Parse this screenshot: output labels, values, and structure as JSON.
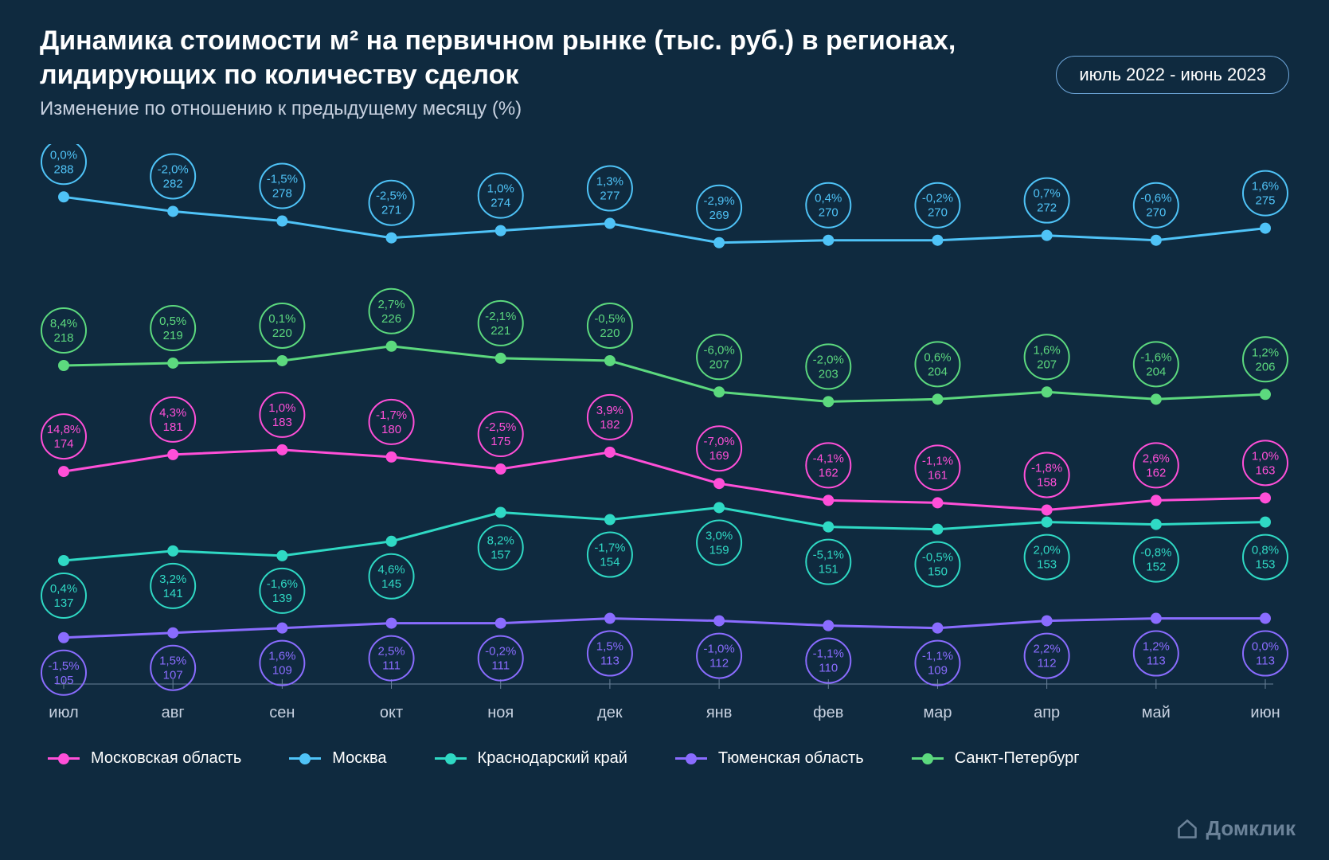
{
  "background_color": "#0f2a3f",
  "title": "Динамика стоимости м² на первичном рынке (тыс. руб.) в регионах, лидирующих по количеству сделок",
  "subtitle": "Изменение по отношению к предыдущему месяцу (%)",
  "period_label": "июль 2022 - июнь 2023",
  "brand": "Домклик",
  "chart": {
    "type": "line",
    "x_labels": [
      "июл",
      "авг",
      "сен",
      "окт",
      "ноя",
      "дек",
      "янв",
      "фев",
      "мар",
      "апр",
      "май",
      "июн"
    ],
    "x_label_fontsize": 20,
    "x_label_color": "#c7d1e0",
    "axis_line_color": "#6a8199",
    "line_width": 3,
    "marker_radius": 7,
    "bubble_radius": 28,
    "bubble_text_fontsize": 15,
    "bubble_above_for": [
      "moscow",
      "spb",
      "mosobl"
    ],
    "y_value_min": 95,
    "y_value_max": 300,
    "series": [
      {
        "id": "moscow",
        "name": "Москва",
        "color": "#4fc3f7",
        "values": [
          288,
          282,
          278,
          271,
          274,
          277,
          269,
          270,
          270,
          272,
          270,
          275
        ],
        "changes": [
          "0,0%",
          "-2,0%",
          "-1,5%",
          "-2,5%",
          "1,0%",
          "1,3%",
          "-2,9%",
          "0,4%",
          "-0,2%",
          "0,7%",
          "-0,6%",
          "1,6%"
        ]
      },
      {
        "id": "spb",
        "name": "Санкт-Петербург",
        "color": "#5cd97e",
        "values": [
          218,
          219,
          220,
          226,
          221,
          220,
          207,
          203,
          204,
          207,
          204,
          206
        ],
        "changes": [
          "8,4%",
          "0,5%",
          "0,1%",
          "2,7%",
          "-2,1%",
          "-0,5%",
          "-6,0%",
          "-2,0%",
          "0,6%",
          "1,6%",
          "-1,6%",
          "1,2%"
        ]
      },
      {
        "id": "mosobl",
        "name": "Московская область",
        "color": "#ff4fd8",
        "values": [
          174,
          181,
          183,
          180,
          175,
          182,
          169,
          162,
          161,
          158,
          162,
          163
        ],
        "changes": [
          "14,8%",
          "4,3%",
          "1,0%",
          "-1,7%",
          "-2,5%",
          "3,9%",
          "-7,0%",
          "-4,1%",
          "-1,1%",
          "-1,8%",
          "2,6%",
          "1,0%"
        ]
      },
      {
        "id": "krasnodar",
        "name": "Краснодарский край",
        "color": "#2fd9c4",
        "values": [
          137,
          141,
          139,
          145,
          157,
          154,
          159,
          151,
          150,
          153,
          152,
          153
        ],
        "changes": [
          "0,4%",
          "3,2%",
          "-1,6%",
          "4,6%",
          "8,2%",
          "-1,7%",
          "3,0%",
          "-5,1%",
          "-0,5%",
          "2,0%",
          "-0,8%",
          "0,8%"
        ]
      },
      {
        "id": "tyumen",
        "name": "Тюменская область",
        "color": "#8a6cff",
        "values": [
          105,
          107,
          109,
          111,
          111,
          113,
          112,
          110,
          109,
          112,
          113,
          113
        ],
        "changes": [
          "-1,5%",
          "1,5%",
          "1,6%",
          "2,5%",
          "-0,2%",
          "1,5%",
          "-1,0%",
          "-1,1%",
          "-1,1%",
          "2,2%",
          "1,2%",
          "0,0%"
        ]
      }
    ],
    "legend_order": [
      "mosobl",
      "moscow",
      "krasnodar",
      "tyumen",
      "spb"
    ]
  }
}
